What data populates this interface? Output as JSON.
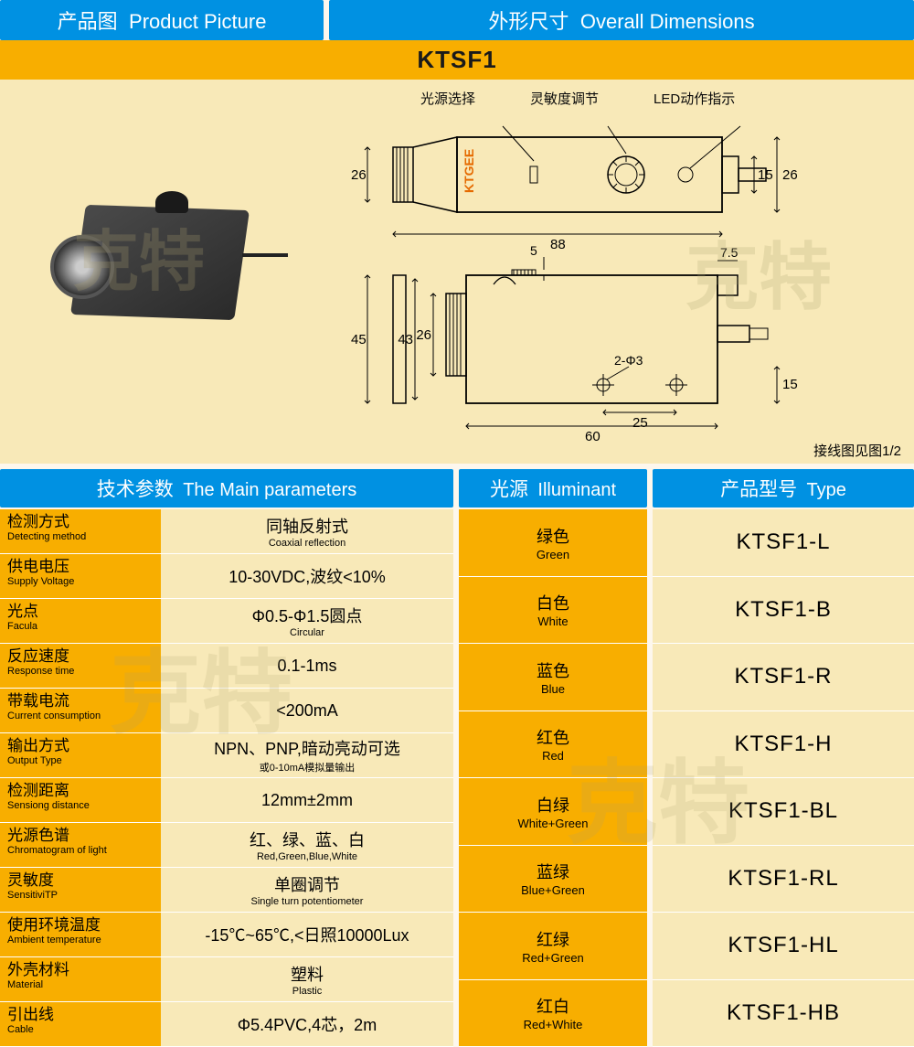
{
  "headers": {
    "productPic": {
      "cn": "产品图",
      "en": "Product Picture"
    },
    "overallDim": {
      "cn": "外形尺寸",
      "en": "Overall Dimensions"
    },
    "params": {
      "cn": "技术参数",
      "en": "The Main parameters"
    },
    "illum": {
      "cn": "光源",
      "en": "Illuminant"
    },
    "type": {
      "cn": "产品型号",
      "en": "Type"
    }
  },
  "model": "KTSF1",
  "watermark": "克特",
  "dim": {
    "labels": {
      "a": "光源选择",
      "b": "灵敏度调节",
      "c": "LED动作指示"
    },
    "brand": "KTGEE",
    "top": {
      "h26": "26",
      "h15": "15",
      "h26r": "26",
      "w88": "88"
    },
    "bot": {
      "h45": "45",
      "h43": "43",
      "h26": "26",
      "w60": "60",
      "w25": "25",
      "h5": "5",
      "w75": "7.5",
      "h15": "15",
      "holes": "2-Φ3"
    },
    "note": "接线图见图1/2"
  },
  "params": [
    {
      "cn": "检测方式",
      "en": "Detecting method",
      "valCn": "同轴反射式",
      "valEn": "Coaxial reflection"
    },
    {
      "cn": "供电电压",
      "en": "Supply Voltage",
      "valCn": "10-30VDC,波纹<10%",
      "valEn": ""
    },
    {
      "cn": "光点",
      "en": "Facula",
      "valCn": "Φ0.5-Φ1.5圆点",
      "valEn": "Circular"
    },
    {
      "cn": "反应速度",
      "en": "Response time",
      "valCn": "0.1-1ms",
      "valEn": ""
    },
    {
      "cn": "带载电流",
      "en": "Current consumption",
      "valCn": "<200mA",
      "valEn": ""
    },
    {
      "cn": "输出方式",
      "en": "Output Type",
      "valCn": "NPN、PNP,暗动亮动可选",
      "valEn": "或0-10mA模拟量输出"
    },
    {
      "cn": "检测距离",
      "en": "Sensiong distance",
      "valCn": "12mm±2mm",
      "valEn": ""
    },
    {
      "cn": "光源色谱",
      "en": "Chromatogram of light",
      "valCn": "红、绿、蓝、白",
      "valEn": "Red,Green,Blue,White"
    },
    {
      "cn": "灵敏度",
      "en": "SensitiviTP",
      "valCn": "单圈调节",
      "valEn": "Single turn potentiometer"
    },
    {
      "cn": "使用环境温度",
      "en": "Ambient temperature",
      "valCn": "-15℃~65℃,<日照10000Lux",
      "valEn": ""
    },
    {
      "cn": "外壳材料",
      "en": "Material",
      "valCn": "塑料",
      "valEn": "Plastic"
    },
    {
      "cn": "引出线",
      "en": "Cable",
      "valCn": "Φ5.4PVC,4芯，2m",
      "valEn": ""
    }
  ],
  "illumList": [
    {
      "cn": "绿色",
      "en": "Green"
    },
    {
      "cn": "白色",
      "en": "White"
    },
    {
      "cn": "蓝色",
      "en": "Blue"
    },
    {
      "cn": "红色",
      "en": "Red"
    },
    {
      "cn": "白绿",
      "en": "White+Green"
    },
    {
      "cn": "蓝绿",
      "en": "Blue+Green"
    },
    {
      "cn": "红绿",
      "en": "Red+Green"
    },
    {
      "cn": "红白",
      "en": "Red+White"
    }
  ],
  "typeList": [
    "KTSF1-L",
    "KTSF1-B",
    "KTSF1-R",
    "KTSF1-H",
    "KTSF1-BL",
    "KTSF1-RL",
    "KTSF1-HL",
    "KTSF1-HB"
  ],
  "colors": {
    "blue": "#0091e2",
    "orange": "#f8ae00",
    "cream": "#f8e9b8"
  }
}
